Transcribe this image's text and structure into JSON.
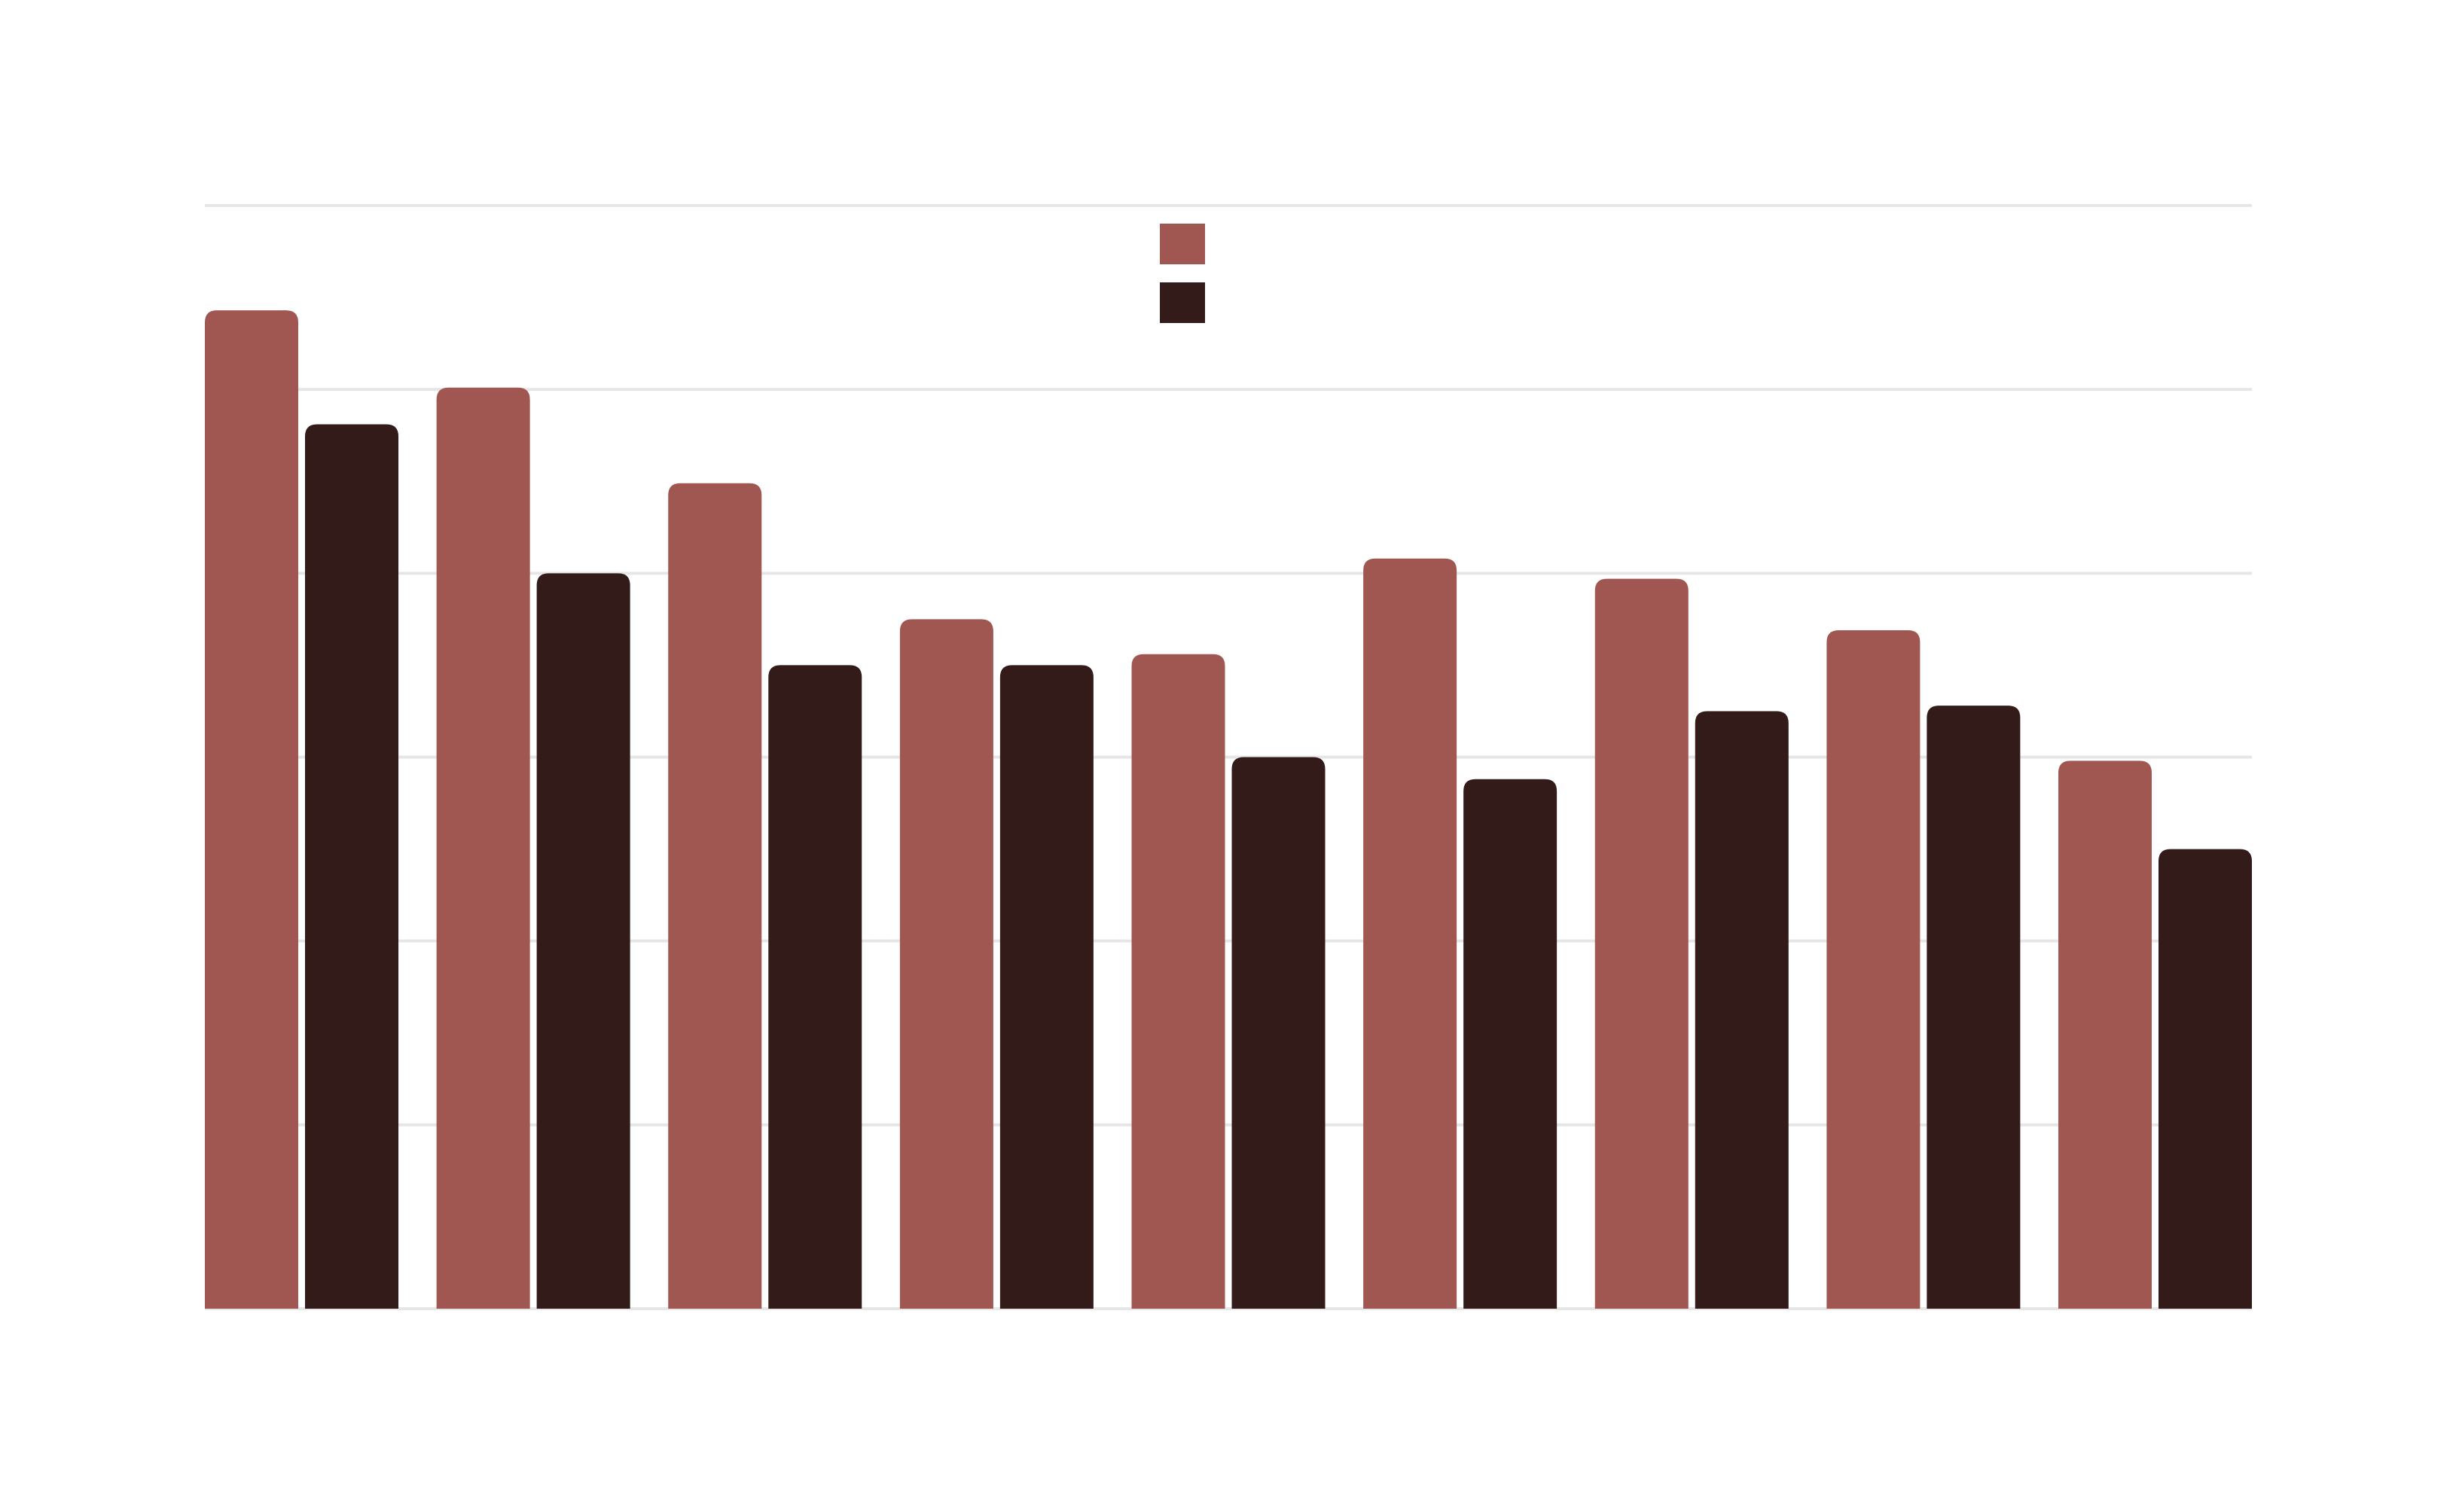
{
  "chart_data": {
    "type": "bar",
    "categories": [
      "",
      "",
      "",
      "",
      "",
      "",
      "",
      "",
      ""
    ],
    "series": [
      {
        "values": [
          5.43,
          5.01,
          4.49,
          3.75,
          3.56,
          4.08,
          3.97,
          3.69,
          2.98
        ],
        "color": "#a05752"
      },
      {
        "values": [
          4.81,
          4.0,
          3.5,
          3.5,
          3.0,
          2.88,
          3.25,
          3.28,
          2.5
        ]
      }
    ],
    "colors": [
      "#a05752",
      "#331b1a"
    ],
    "ylim": [
      0,
      6
    ],
    "y_gridlines": [
      0,
      1,
      2,
      3,
      4,
      5,
      6
    ],
    "grid": true,
    "legend": {
      "position": "top-center"
    },
    "title": "",
    "xlabel": "",
    "ylabel": ""
  }
}
